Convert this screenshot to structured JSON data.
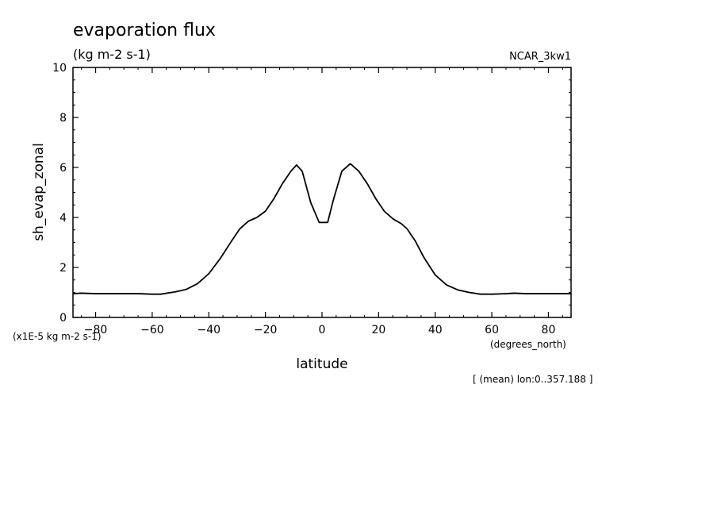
{
  "chart_data": {
    "type": "line",
    "title": "evaporation flux",
    "subtitle": "(kg m-2 s-1)",
    "dataset_label": "NCAR_3kw1",
    "xlabel": "latitude",
    "x_unit": "(degrees_north)",
    "ylabel": "sh_evap_zonal",
    "y_scale_note": "(x1E-5 kg m-2 s-1)",
    "footnote": "[ (mean) lon:0..357.188 ]",
    "xlim": [
      -88,
      88
    ],
    "ylim": [
      0,
      10
    ],
    "xticks": [
      -80,
      -60,
      -40,
      -20,
      0,
      20,
      40,
      60,
      80
    ],
    "yticks": [
      0,
      2,
      4,
      6,
      8,
      10
    ],
    "grid": false,
    "legend": "none",
    "line_color": "#000000",
    "series": [
      {
        "x": [
          -88,
          -85,
          -80,
          -75,
          -70,
          -65,
          -60,
          -57,
          -52,
          -48,
          -44,
          -40,
          -36,
          -32,
          -29,
          -26,
          -23,
          -20,
          -17,
          -14,
          -11,
          -9,
          -7,
          -4,
          -1,
          2,
          4,
          7,
          10,
          13,
          16,
          19,
          22,
          25,
          28,
          30,
          33,
          36,
          40,
          44,
          48,
          52,
          56,
          60,
          65,
          68,
          72,
          76,
          80,
          84,
          88
        ],
        "y": [
          0.95,
          0.97,
          0.95,
          0.95,
          0.95,
          0.95,
          0.93,
          0.93,
          1.02,
          1.12,
          1.35,
          1.75,
          2.35,
          3.05,
          3.55,
          3.85,
          4.0,
          4.25,
          4.75,
          5.35,
          5.85,
          6.1,
          5.85,
          4.6,
          3.8,
          3.8,
          4.7,
          5.85,
          6.15,
          5.85,
          5.35,
          4.75,
          4.25,
          3.95,
          3.75,
          3.55,
          3.05,
          2.4,
          1.7,
          1.3,
          1.1,
          1.0,
          0.93,
          0.93,
          0.95,
          0.97,
          0.95,
          0.95,
          0.95,
          0.95,
          0.95
        ]
      }
    ]
  }
}
